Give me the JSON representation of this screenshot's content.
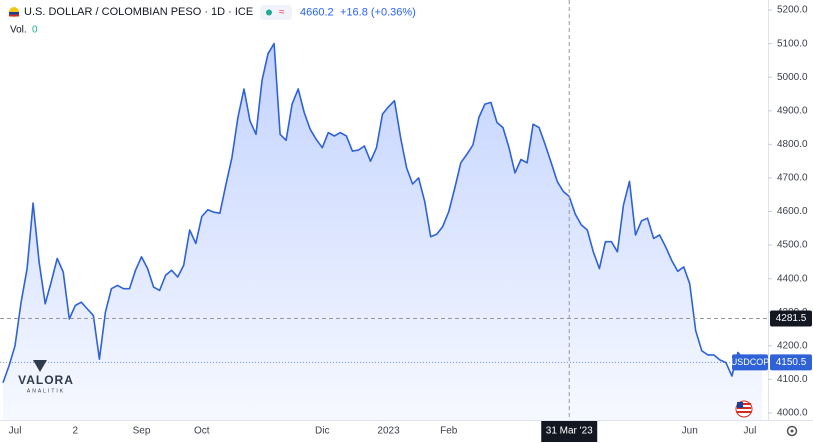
{
  "header": {
    "title": "U.S. DOLLAR / COLOMBIAN PESO · 1D · ICE",
    "price": "4660.2",
    "change": "+16.8 (+0.36%)"
  },
  "volume": {
    "label": "Vol.",
    "value": "0"
  },
  "watermark": {
    "name": "VALORA",
    "tagline": "ANALITIK"
  },
  "chart_data": {
    "type": "area",
    "categories": [
      null,
      null,
      "Jul",
      null,
      null,
      null,
      null,
      null,
      null,
      null,
      null,
      null,
      "2",
      null,
      null,
      null,
      null,
      null,
      null,
      null,
      null,
      null,
      null,
      "Sep",
      null,
      null,
      null,
      null,
      null,
      null,
      null,
      null,
      null,
      "Oct",
      null,
      null,
      null,
      null,
      null,
      null,
      null,
      null,
      null,
      null,
      null,
      null,
      null,
      null,
      null,
      null,
      null,
      null,
      null,
      "Dic",
      null,
      null,
      null,
      null,
      null,
      null,
      null,
      null,
      null,
      null,
      "2023",
      null,
      null,
      null,
      null,
      null,
      null,
      null,
      null,
      null,
      "Feb",
      null,
      null,
      null,
      null,
      null,
      null,
      null,
      null,
      null,
      null,
      null,
      null,
      null,
      null,
      null,
      null,
      null,
      null,
      null,
      "31 Mar '23",
      null,
      null,
      null,
      null,
      null,
      null,
      null,
      null,
      null,
      null,
      null,
      null,
      null,
      null,
      null,
      null,
      null,
      null,
      null,
      "Jun",
      null,
      null,
      null,
      null,
      null,
      null,
      null,
      null,
      null,
      "Jul",
      null,
      null
    ],
    "series": [
      {
        "name": "USDCOP",
        "color": "#2e62d6",
        "values": [
          4090,
          4140,
          4200,
          4330,
          4430,
          4625,
          4450,
          4325,
          4390,
          4460,
          4420,
          4280,
          4320,
          4330,
          4310,
          4290,
          4160,
          4300,
          4370,
          4380,
          4370,
          4370,
          4425,
          4465,
          4430,
          4375,
          4365,
          4410,
          4425,
          4405,
          4440,
          4545,
          4505,
          4585,
          4605,
          4598,
          4595,
          4680,
          4760,
          4880,
          4965,
          4870,
          4830,
          4990,
          5070,
          5100,
          4830,
          4812,
          4920,
          4965,
          4895,
          4845,
          4815,
          4790,
          4835,
          4825,
          4835,
          4825,
          4780,
          4783,
          4795,
          4750,
          4790,
          4890,
          4912,
          4930,
          4820,
          4730,
          4682,
          4700,
          4630,
          4525,
          4532,
          4555,
          4600,
          4670,
          4745,
          4770,
          4798,
          4880,
          4920,
          4925,
          4865,
          4850,
          4790,
          4715,
          4755,
          4745,
          4860,
          4850,
          4800,
          4745,
          4690,
          4660,
          4645,
          4592,
          4560,
          4545,
          4480,
          4430,
          4510,
          4510,
          4480,
          4620,
          4690,
          4530,
          4572,
          4580,
          4520,
          4530,
          4495,
          4455,
          4422,
          4435,
          4385,
          4245,
          4185,
          4173,
          4173,
          4158,
          4150,
          4110,
          4180,
          4158,
          4158,
          4158,
          4150.5
        ]
      }
    ],
    "ylim": [
      3979,
      5230
    ],
    "yticks": [
      {
        "value": 4000,
        "label": "4000.0"
      },
      {
        "value": 4100,
        "label": "4100.0"
      },
      {
        "value": 4200,
        "label": "4200.0"
      },
      {
        "value": 4300,
        "label": "4300.0"
      },
      {
        "value": 4400,
        "label": "4400.0"
      },
      {
        "value": 4500,
        "label": "4500.0"
      },
      {
        "value": 4600,
        "label": "4600.0"
      },
      {
        "value": 4700,
        "label": "4700.0"
      },
      {
        "value": 4800,
        "label": "4800.0"
      },
      {
        "value": 4900,
        "label": "4900.0"
      },
      {
        "value": 5000,
        "label": "5000.0"
      },
      {
        "value": 5100,
        "label": "5100.0"
      },
      {
        "value": 5200,
        "label": "5200.0"
      }
    ],
    "crosshair": {
      "y": 4281.5,
      "index": 94
    },
    "grid": false
  }
}
